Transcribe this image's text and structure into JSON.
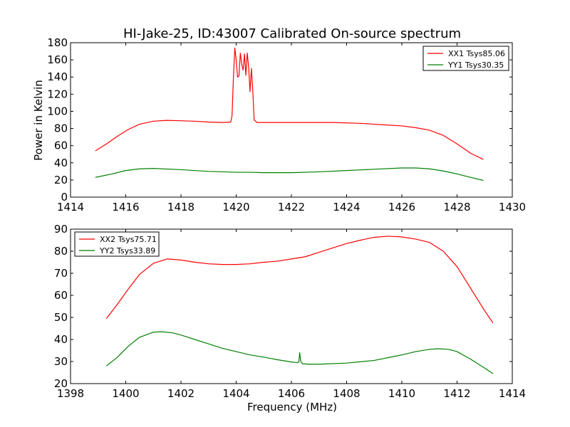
{
  "figure": {
    "title": "HI-Jake-25, ID:43007 Calibrated On-source spectrum",
    "xlabel": "Frequency (MHz)",
    "ylabel": "Power in Kelvin"
  },
  "colors": {
    "red": "#ff0000",
    "green": "#008000"
  },
  "chart_data": [
    {
      "type": "line",
      "title": "HI-Jake-25, ID:43007 Calibrated On-source spectrum",
      "xlabel": "",
      "ylabel": "Power in Kelvin",
      "xlim": [
        1414,
        1430
      ],
      "ylim": [
        0,
        180
      ],
      "xticks": [
        1414,
        1416,
        1418,
        1420,
        1422,
        1424,
        1426,
        1428,
        1430
      ],
      "yticks": [
        0,
        20,
        40,
        60,
        80,
        100,
        120,
        140,
        160,
        180
      ],
      "legend": "top-right",
      "grid": false,
      "series": [
        {
          "name": "XX1 Tsys85.06",
          "color": "#ff0000",
          "points": [
            [
              1414.9,
              54
            ],
            [
              1415.3,
              62
            ],
            [
              1415.7,
              71
            ],
            [
              1416.1,
              79
            ],
            [
              1416.5,
              85
            ],
            [
              1417.0,
              88.5
            ],
            [
              1417.5,
              89.5
            ],
            [
              1418.0,
              89
            ],
            [
              1418.5,
              88.5
            ],
            [
              1419.0,
              87.5
            ],
            [
              1419.5,
              87
            ],
            [
              1419.8,
              87.5
            ],
            [
              1419.85,
              95
            ],
            [
              1419.9,
              140
            ],
            [
              1419.95,
              174
            ],
            [
              1420.0,
              160
            ],
            [
              1420.05,
              140
            ],
            [
              1420.1,
              141
            ],
            [
              1420.15,
              168
            ],
            [
              1420.2,
              155
            ],
            [
              1420.25,
              148
            ],
            [
              1420.3,
              167
            ],
            [
              1420.35,
              142
            ],
            [
              1420.4,
              168
            ],
            [
              1420.45,
              152
            ],
            [
              1420.5,
              123
            ],
            [
              1420.55,
              150
            ],
            [
              1420.6,
              125
            ],
            [
              1420.65,
              90
            ],
            [
              1420.75,
              87
            ],
            [
              1421.5,
              87
            ],
            [
              1422.5,
              87
            ],
            [
              1423.5,
              87
            ],
            [
              1424.5,
              86
            ],
            [
              1425.5,
              84
            ],
            [
              1426.0,
              83
            ],
            [
              1426.5,
              81
            ],
            [
              1427.0,
              78
            ],
            [
              1427.5,
              72
            ],
            [
              1428.0,
              62
            ],
            [
              1428.5,
              51
            ],
            [
              1428.95,
              44
            ]
          ]
        },
        {
          "name": "YY1 Tsys30.35",
          "color": "#008000",
          "points": [
            [
              1414.9,
              23
            ],
            [
              1415.5,
              27
            ],
            [
              1416.0,
              31
            ],
            [
              1416.5,
              33
            ],
            [
              1417.0,
              33.5
            ],
            [
              1418.0,
              32
            ],
            [
              1419.0,
              30
            ],
            [
              1420.0,
              29
            ],
            [
              1420.5,
              29
            ],
            [
              1421.0,
              28.5
            ],
            [
              1422.0,
              28.5
            ],
            [
              1423.0,
              29.5
            ],
            [
              1424.0,
              31
            ],
            [
              1425.0,
              32.5
            ],
            [
              1426.0,
              34
            ],
            [
              1426.5,
              34
            ],
            [
              1427.0,
              33
            ],
            [
              1427.5,
              30.5
            ],
            [
              1428.0,
              27
            ],
            [
              1428.5,
              23
            ],
            [
              1428.95,
              19.5
            ]
          ]
        }
      ]
    },
    {
      "type": "line",
      "title": "",
      "xlabel": "Frequency (MHz)",
      "ylabel": "",
      "xlim": [
        1398,
        1414
      ],
      "ylim": [
        20,
        90
      ],
      "xticks": [
        1398,
        1400,
        1402,
        1404,
        1406,
        1408,
        1410,
        1412,
        1414
      ],
      "yticks": [
        20,
        30,
        40,
        50,
        60,
        70,
        80,
        90
      ],
      "legend": "top-left",
      "grid": false,
      "series": [
        {
          "name": "XX2 Tsys75.71",
          "color": "#ff0000",
          "points": [
            [
              1399.3,
              49.5
            ],
            [
              1399.7,
              56
            ],
            [
              1400.1,
              63
            ],
            [
              1400.5,
              69.5
            ],
            [
              1401.0,
              74.5
            ],
            [
              1401.5,
              76.5
            ],
            [
              1402.0,
              76
            ],
            [
              1402.5,
              75
            ],
            [
              1403.0,
              74.3
            ],
            [
              1403.5,
              74
            ],
            [
              1404.0,
              74
            ],
            [
              1404.5,
              74.3
            ],
            [
              1405.0,
              75
            ],
            [
              1405.5,
              75.5
            ],
            [
              1406.0,
              76.5
            ],
            [
              1406.5,
              77.5
            ],
            [
              1407.0,
              79.5
            ],
            [
              1407.5,
              81.5
            ],
            [
              1408.0,
              83.5
            ],
            [
              1408.5,
              85
            ],
            [
              1409.0,
              86.3
            ],
            [
              1409.5,
              86.8
            ],
            [
              1410.0,
              86.5
            ],
            [
              1410.5,
              85.5
            ],
            [
              1411.0,
              84
            ],
            [
              1411.5,
              80
            ],
            [
              1412.0,
              73
            ],
            [
              1412.5,
              63
            ],
            [
              1413.0,
              53
            ],
            [
              1413.3,
              47.5
            ]
          ]
        },
        {
          "name": "YY2 Tsys33.89",
          "color": "#008000",
          "points": [
            [
              1399.3,
              28
            ],
            [
              1399.7,
              32
            ],
            [
              1400.1,
              37
            ],
            [
              1400.5,
              41
            ],
            [
              1401.0,
              43.3
            ],
            [
              1401.3,
              43.5
            ],
            [
              1401.7,
              43
            ],
            [
              1402.0,
              42
            ],
            [
              1402.5,
              40
            ],
            [
              1403.0,
              38
            ],
            [
              1403.5,
              36
            ],
            [
              1404.0,
              34.5
            ],
            [
              1404.5,
              33
            ],
            [
              1405.0,
              32
            ],
            [
              1405.5,
              30.8
            ],
            [
              1406.0,
              29.8
            ],
            [
              1406.2,
              29.5
            ],
            [
              1406.27,
              29.8
            ],
            [
              1406.3,
              34
            ],
            [
              1406.34,
              30
            ],
            [
              1406.4,
              29
            ],
            [
              1406.6,
              28.8
            ],
            [
              1407.0,
              28.8
            ],
            [
              1408.0,
              29.3
            ],
            [
              1409.0,
              30.5
            ],
            [
              1409.8,
              32.5
            ],
            [
              1410.0,
              33
            ],
            [
              1410.5,
              34.5
            ],
            [
              1411.0,
              35.5
            ],
            [
              1411.3,
              35.8
            ],
            [
              1411.7,
              35.5
            ],
            [
              1412.0,
              34.5
            ],
            [
              1412.5,
              31
            ],
            [
              1413.0,
              27
            ],
            [
              1413.3,
              24.5
            ]
          ]
        }
      ]
    }
  ]
}
